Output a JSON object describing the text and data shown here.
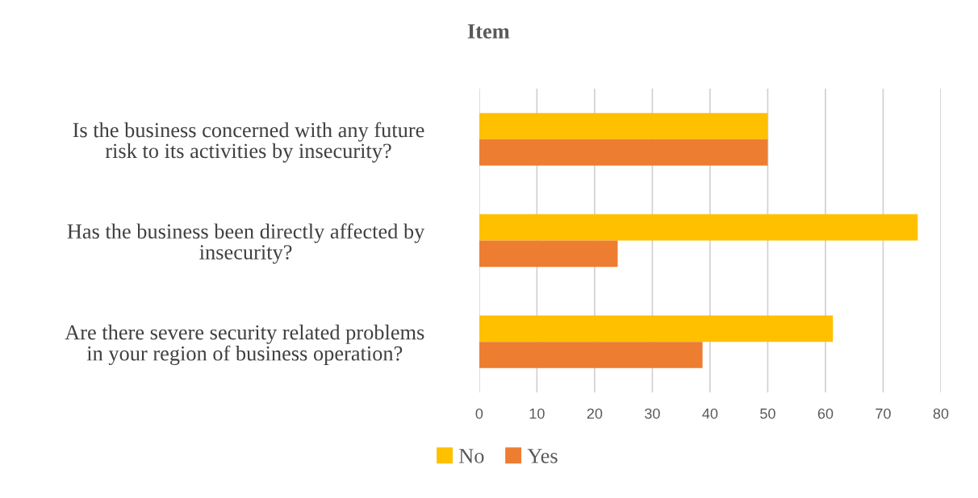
{
  "chart_data": {
    "type": "bar",
    "orientation": "horizontal",
    "title": "Item",
    "categories": [
      "Is the business concerned with any future risk to its activities by insecurity?",
      "Has the business been directly affected by insecurity?",
      "Are there severe security related problems in your region of business operation?"
    ],
    "series": [
      {
        "name": "No",
        "color": "#ffc000",
        "values": [
          50,
          76,
          61.3
        ]
      },
      {
        "name": "Yes",
        "color": "#ed7d31",
        "values": [
          50,
          24,
          38.7
        ]
      }
    ],
    "xlim": [
      0,
      80
    ],
    "xticks": [
      0,
      10,
      20,
      30,
      40,
      50,
      60,
      70,
      80
    ],
    "grid": "x",
    "legend": "bottom"
  }
}
